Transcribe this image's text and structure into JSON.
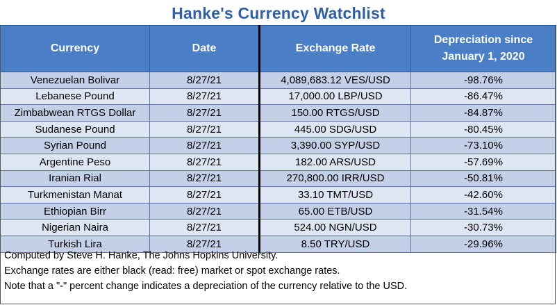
{
  "title": "Hanke's Currency Watchlist",
  "headers": {
    "currency": "Currency",
    "date": "Date",
    "rate": "Exchange Rate",
    "depreciation_line1": "Depreciation since",
    "depreciation_line2": "January 1, 2020"
  },
  "rows": [
    {
      "currency": "Venezuelan Bolivar",
      "date": "8/27/21",
      "rate": "4,089,683.12 VES/USD",
      "depreciation": "-98.76%"
    },
    {
      "currency": "Lebanese Pound",
      "date": "8/27/21",
      "rate": "17,000.00 LBP/USD",
      "depreciation": "-86.47%"
    },
    {
      "currency": "Zimbabwean RTGS Dollar",
      "date": "8/27/21",
      "rate": "150.00 RTGS/USD",
      "depreciation": "-84.87%"
    },
    {
      "currency": "Sudanese Pound",
      "date": "8/27/21",
      "rate": "445.00 SDG/USD",
      "depreciation": "-80.45%"
    },
    {
      "currency": "Syrian Pound",
      "date": "8/27/21",
      "rate": "3,390.00 SYP/USD",
      "depreciation": "-73.10%"
    },
    {
      "currency": "Argentine Peso",
      "date": "8/27/21",
      "rate": "182.00 ARS/USD",
      "depreciation": "-57.69%"
    },
    {
      "currency": "Iranian Rial",
      "date": "8/27/21",
      "rate": "270,800.00 IRR/USD",
      "depreciation": "-50.81%"
    },
    {
      "currency": "Turkmenistan Manat",
      "date": "8/27/21",
      "rate": "33.10 TMT/USD",
      "depreciation": "-42.60%"
    },
    {
      "currency": "Ethiopian Birr",
      "date": "8/27/21",
      "rate": "65.00 ETB/USD",
      "depreciation": "-31.54%"
    },
    {
      "currency": "Nigerian Naira",
      "date": "8/27/21",
      "rate": "524.00 NGN/USD",
      "depreciation": "-30.73%"
    },
    {
      "currency": "Turkish Lira",
      "date": "8/27/21",
      "rate": "8.50 TRY/USD",
      "depreciation": "-29.96%"
    }
  ],
  "notes": [
    "Computed by Steve H. Hanke, The Johns Hopkins University.",
    "Exchange rates are either black (read: free) market or spot exchange rates.",
    "Note that a \"-\" percent change indicates a depreciation of the currency relative to the USD."
  ],
  "colors": {
    "title": "#2e5fa8",
    "header_bg": "#4a7fc7",
    "row_odd": "#c4d0e8",
    "row_even": "#dfe6f3"
  }
}
